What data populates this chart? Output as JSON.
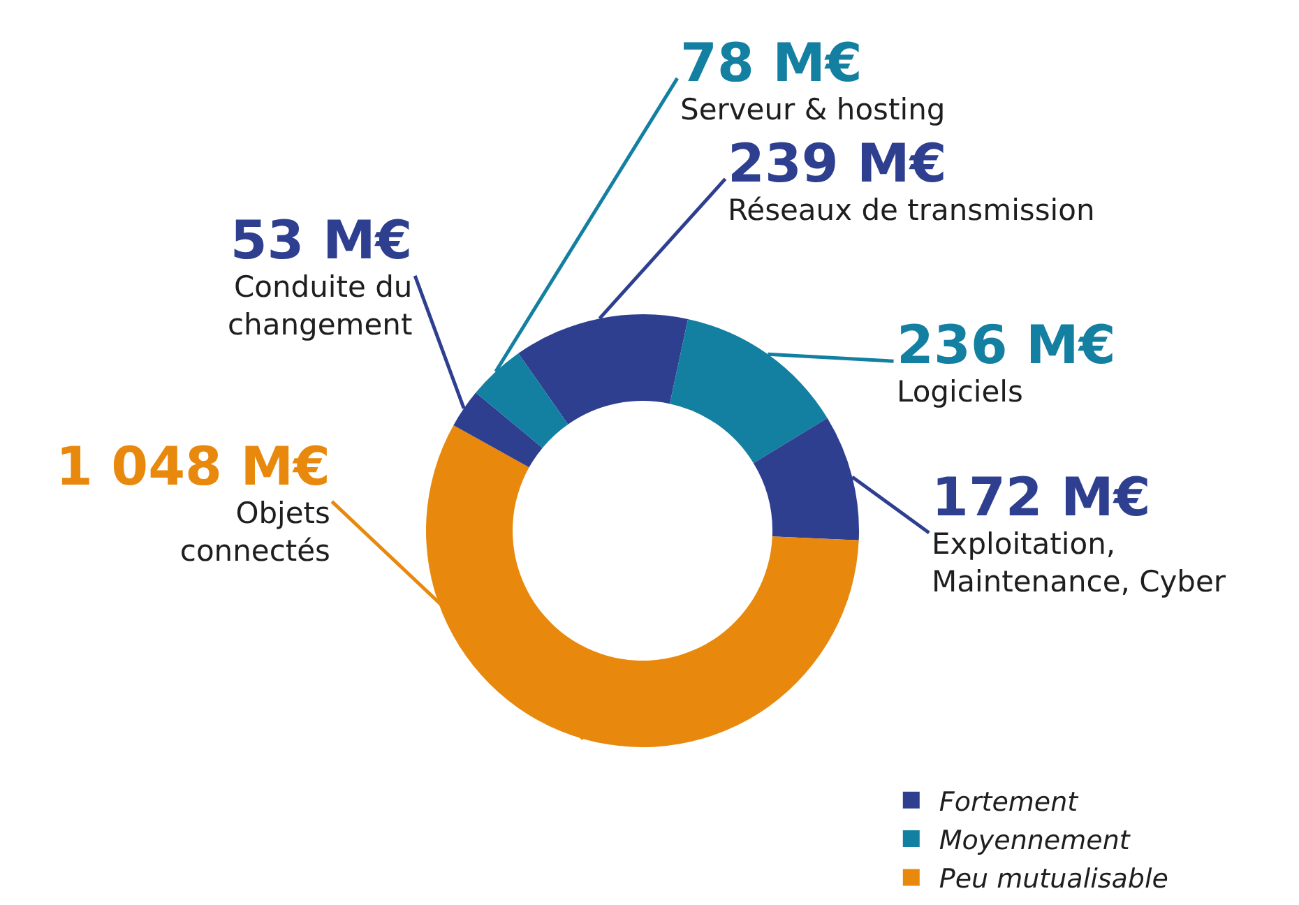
{
  "chart_data": {
    "type": "donut",
    "categories": [
      "Réseaux de transmission",
      "Logiciels",
      "Exploitation,\nMaintenance, Cyber",
      "Objets\nconnectés",
      "Conduite du\nchangement",
      "Serveur & hosting"
    ],
    "values": [
      239,
      236,
      172,
      1048,
      53,
      78
    ],
    "value_labels": [
      "239 M€",
      "236 M€",
      "172 M€",
      "1 048 M€",
      "53 M€",
      "78 M€"
    ],
    "colors": [
      "#2f3f90",
      "#137fa1",
      "#2f3f90",
      "#e8890d",
      "#2f3f90",
      "#137fa1"
    ],
    "annotations": [
      "Fortement",
      "Moyennement",
      "Peu mutualisable"
    ]
  }
}
